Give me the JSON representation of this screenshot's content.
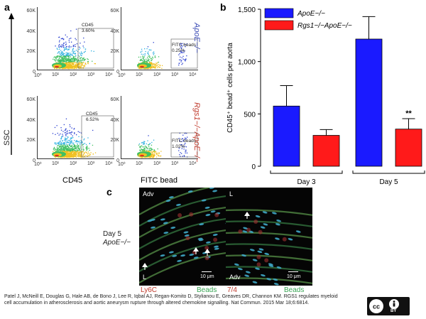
{
  "panel_a": {
    "letter": "a",
    "y_axis_label": "SSC",
    "left_x_axis_label": "CD45",
    "right_x_axis_label": "FITC bead",
    "y_ticks": [
      "60K",
      "40K",
      "20K",
      "0"
    ],
    "x_ticks": [
      "10⁰",
      "10¹",
      "10²",
      "10³",
      "10⁴"
    ],
    "gates": {
      "top_left": "CD45\n3.60%",
      "top_right": "FITC beads\n0.25%",
      "bottom_left": "CD45\n6.52%",
      "bottom_right": "FITC beads\n1.02%"
    },
    "row_labels": {
      "top": "ApoE−/−",
      "bottom": "Rgs1−/−ApoE−/−"
    },
    "colors": {
      "top_label": "#3b4bb5",
      "bottom_label": "#c0392b"
    }
  },
  "panel_c": {
    "letter": "c",
    "row_label_1": "Day 5",
    "row_label_2": "ApoE−/−",
    "image1": {
      "top_label": "Adv",
      "bottom_label": "L",
      "scale": "10 μm",
      "stain_left": "Ly6C",
      "stain_right": "Beads"
    },
    "image2": {
      "top_label": "L",
      "bottom_label": "Adv",
      "scale": "10 μm",
      "stain_left": "7/4",
      "stain_right": "Beads"
    },
    "colors": {
      "stain_red": "#c0392b",
      "stain_green": "#3aa655"
    }
  },
  "caption": "Patel J, McNeill E, Douglas G, Hale AB, de Bono J, Lee R, Iqbal AJ, Regan-Komito D, Stylianou E, Greaves DR, Channon KM. RGS1 regulates myeloid cell accumulation in atherosclerosis and aortic aneurysm rupture through altered chemokine signalling. Nat Commun. 2015 Mar 18;6:6814.",
  "license_text": "BY",
  "chart_data": {
    "type": "bar",
    "letter": "b",
    "categories": [
      "Day 3",
      "Day 5"
    ],
    "ylabel": "CD45⁺ bead⁺ cells per aorta",
    "ylim": [
      0,
      1500
    ],
    "yticks": [
      0,
      500,
      1000,
      1500
    ],
    "ytick_labels": [
      "0",
      "500",
      "1,000",
      "1,500"
    ],
    "series": [
      {
        "name": "ApoE−/−",
        "color": "#1a1aff",
        "values": [
          575,
          1215
        ],
        "errors": [
          195,
          215
        ]
      },
      {
        "name": "Rgs1−/−ApoE−/−",
        "color": "#ff1a1a",
        "values": [
          295,
          355
        ],
        "errors": [
          55,
          100
        ]
      }
    ],
    "annotations": [
      {
        "category": "Day 5",
        "series": 1,
        "text": "**"
      }
    ],
    "legend_position": "top-left"
  }
}
